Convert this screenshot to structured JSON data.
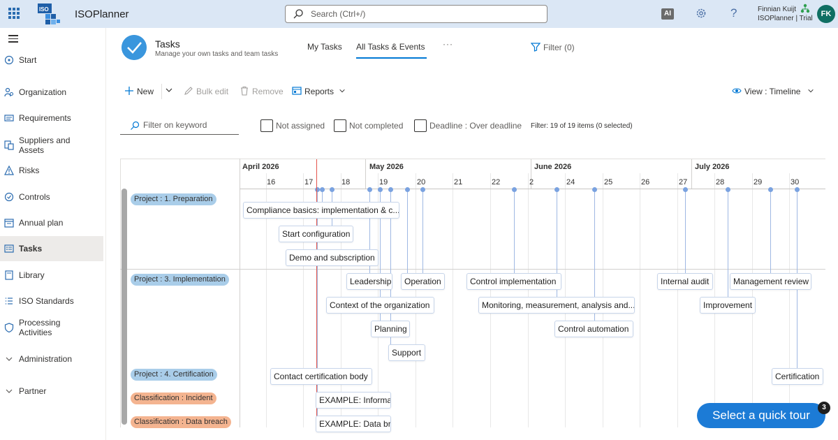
{
  "app": {
    "title": "ISOPlanner"
  },
  "search": {
    "placeholder": "Search (Ctrl+/)"
  },
  "topbar": {
    "ai_label": "AI",
    "user_name": "Finnian Kuijt",
    "user_org": "ISOPlanner | Trial",
    "avatar_initials": "FK"
  },
  "sidebar": {
    "items": [
      {
        "label": "Start",
        "icon": "start-icon"
      },
      {
        "label": "Organization",
        "icon": "organization-icon"
      },
      {
        "label": "Requirements",
        "icon": "requirements-icon"
      },
      {
        "label": "Suppliers and Assets",
        "icon": "suppliers-icon"
      },
      {
        "label": "Risks",
        "icon": "risks-icon"
      },
      {
        "label": "Controls",
        "icon": "controls-icon"
      },
      {
        "label": "Annual plan",
        "icon": "annual-plan-icon"
      },
      {
        "label": "Tasks",
        "icon": "tasks-icon",
        "active": true
      },
      {
        "label": "Library",
        "icon": "library-icon"
      },
      {
        "label": "ISO Standards",
        "icon": "iso-standards-icon"
      },
      {
        "label": "Processing Activities",
        "icon": "processing-icon"
      },
      {
        "label": "Administration",
        "icon": "chevron-down-icon"
      },
      {
        "label": "Partner",
        "icon": "chevron-down-icon"
      }
    ]
  },
  "header": {
    "title": "Tasks",
    "subtitle": "Manage your own tasks and team tasks",
    "tabs": [
      {
        "label": "My Tasks"
      },
      {
        "label": "All Tasks & Events",
        "active": true
      }
    ],
    "more": "···",
    "filter_label": "Filter (0)"
  },
  "toolbar": {
    "new_label": "New",
    "bulk_edit_label": "Bulk edit",
    "remove_label": "Remove",
    "reports_label": "Reports",
    "view_label": "View : Timeline"
  },
  "filters": {
    "keyword_placeholder": "Filter on keyword",
    "not_assigned": "Not assigned",
    "not_completed": "Not completed",
    "deadline": "Deadline : Over deadline",
    "summary": "Filter: 19 of 19 items (0 selected)"
  },
  "timeline": {
    "months": [
      "April 2026",
      "May 2026",
      "June 2026",
      "July 2026"
    ],
    "days": [
      "16",
      "17",
      "18",
      "19",
      "20",
      "21",
      "22",
      "2",
      "24",
      "25",
      "26",
      "27",
      "28",
      "29",
      "30"
    ],
    "groups": [
      {
        "label": "Project : 1. Preparation",
        "color": "#a9cde9"
      },
      {
        "label": "Project : 3. Implementation",
        "color": "#a9cde9"
      },
      {
        "label": "Project : 4. Certification",
        "color": "#a9cde9"
      },
      {
        "label": "Classification : Incident",
        "color": "#f4b490"
      },
      {
        "label": "Classification : Data breach",
        "color": "#f4b490"
      }
    ],
    "items": [
      "Compliance basics: implementation & c...",
      "Start configuration",
      "Demo and subscription",
      "Leadership",
      "Operation",
      "Control implementation",
      "Internal audit",
      "Management review",
      "Context of the organization",
      "Monitoring, measurement, analysis and...",
      "Improvement",
      "Planning",
      "Control automation",
      "Support",
      "Contact certification body",
      "Certification",
      "EXAMPLE: Informati",
      "EXAMPLE: Data bre"
    ]
  },
  "tour": {
    "label": "Select a quick tour",
    "badge": "3"
  }
}
